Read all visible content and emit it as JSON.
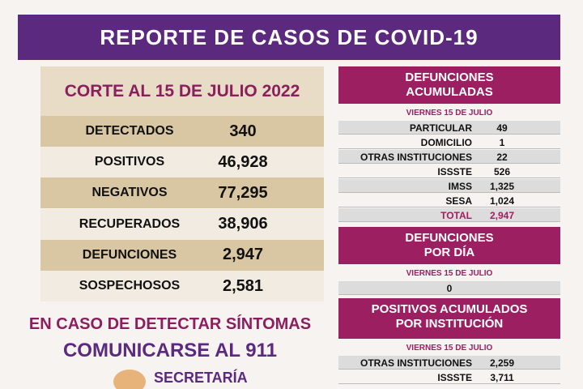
{
  "header": {
    "title": "REPORTE DE CASOS DE COVID-19"
  },
  "summary": {
    "title": "CORTE AL 15 DE JULIO 2022",
    "rows": [
      [
        "DETECTADOS",
        "340"
      ],
      [
        "POSITIVOS",
        "46,928"
      ],
      [
        "NEGATIVOS",
        "77,295"
      ],
      [
        "RECUPERADOS",
        "38,906"
      ],
      [
        "DEFUNCIONES",
        "2,947"
      ],
      [
        "SOSPECHOSOS",
        "2,581"
      ]
    ]
  },
  "call_to_action": {
    "line1": "EN CASO DE DETECTAR SÍNTOMAS",
    "line2": "COMUNICARSE AL 911"
  },
  "logo": {
    "text": "SECRETARÍA"
  },
  "panels": [
    {
      "title": [
        "DEFUNCIONES",
        "ACUMULADAS"
      ],
      "date": "VIERNES 15 DE JULIO",
      "rows": [
        [
          "PARTICULAR",
          "49"
        ],
        [
          "DOMICILIO",
          "1"
        ],
        [
          "OTRAS INSTITUCIONES",
          "22"
        ],
        [
          "ISSSTE",
          "526"
        ],
        [
          "IMSS",
          "1,325"
        ],
        [
          "SESA",
          "1,024"
        ],
        [
          "TOTAL",
          "2,947"
        ]
      ]
    },
    {
      "title": [
        "DEFUNCIONES",
        "POR DÍA"
      ],
      "date": "VIERNES 15 DE JULIO",
      "rows": [
        [
          "",
          "0"
        ]
      ]
    },
    {
      "title": [
        "POSITIVOS ACUMULADOS",
        "POR INSTITUCIÓN"
      ],
      "date": "VIERNES 15 DE JULIO",
      "rows": [
        [
          "OTRAS INSTITUCIONES",
          "2,259"
        ],
        [
          "ISSSTE",
          "3,711"
        ]
      ]
    }
  ]
}
